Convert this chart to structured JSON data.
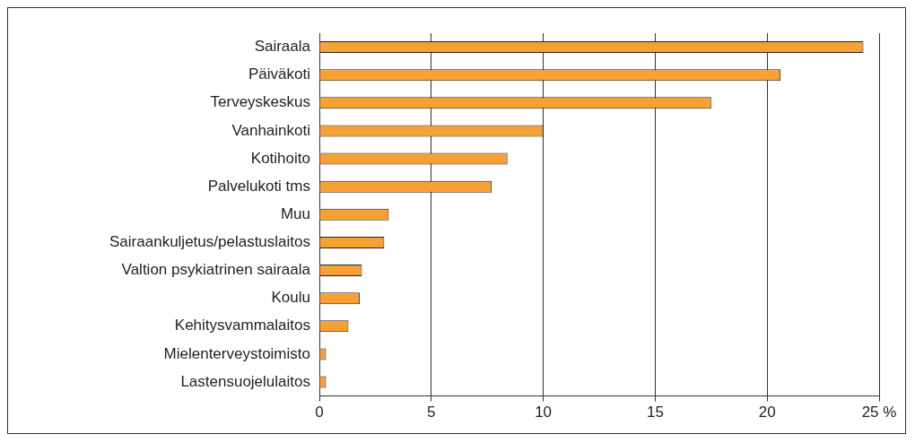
{
  "chart_data": {
    "type": "bar",
    "orientation": "horizontal",
    "categories": [
      "Sairaala",
      "Päiväkoti",
      "Terveyskeskus",
      "Vanhainkoti",
      "Kotihoito",
      "Palvelukoti tms",
      "Muu",
      "Sairaankuljetus/pelastuslaitos",
      "Valtion psykiatrinen sairaala",
      "Koulu",
      "Kehitysvammalaitos",
      "Mielenterveystoimisto",
      "Lastensuojelulaitos"
    ],
    "values": [
      24.3,
      20.6,
      17.5,
      10.0,
      8.4,
      7.7,
      3.1,
      2.9,
      1.9,
      1.8,
      1.3,
      0.3,
      0.3
    ],
    "color": "#f7a033",
    "xlim": [
      0,
      25
    ],
    "xticks": [
      0,
      5,
      10,
      15,
      20,
      {
        "value": 25,
        "label": "25 %"
      }
    ],
    "grid": "x",
    "legend": false
  }
}
